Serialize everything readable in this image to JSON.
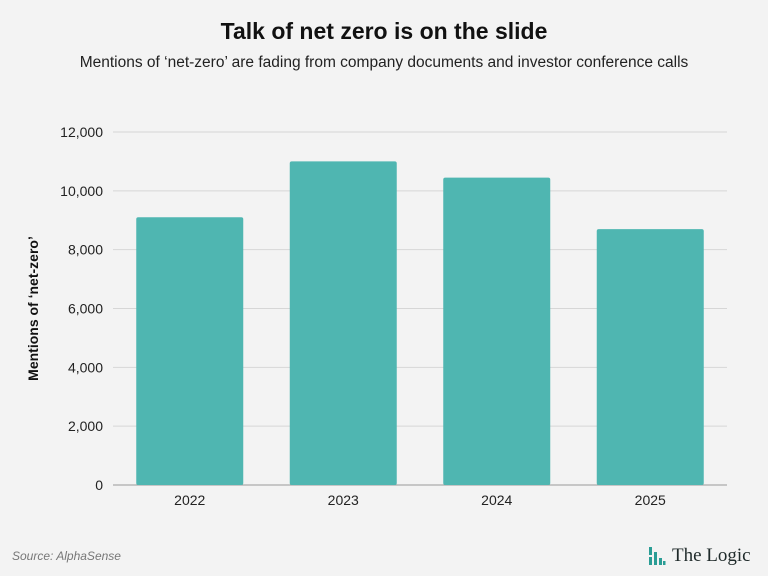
{
  "title": "Talk of net zero is on the slide",
  "subtitle": "Mentions of ‘net-zero’ are fading from company documents and investor conference calls",
  "source": "Source: AlphaSense",
  "brand": {
    "name": "The Logic",
    "icon": "the-logic-logo-icon"
  },
  "colors": {
    "bar": "#4fb6b1",
    "grid": "#d6d6d6",
    "background": "#f3f3f3",
    "logo": "#2a9d95"
  },
  "chart_data": {
    "type": "bar",
    "categories": [
      "2022",
      "2023",
      "2024",
      "2025"
    ],
    "values": [
      9100,
      11000,
      10450,
      8700
    ],
    "ylabel": "Mentions of ‘net-zero’",
    "xlabel": "",
    "ylim": [
      0,
      12000
    ],
    "yticks": [
      0,
      2000,
      4000,
      6000,
      8000,
      10000,
      12000
    ],
    "ytick_labels": [
      "0",
      "2,000",
      "4,000",
      "6,000",
      "8,000",
      "10,000",
      "12,000"
    ],
    "grid": true,
    "legend": "none"
  }
}
